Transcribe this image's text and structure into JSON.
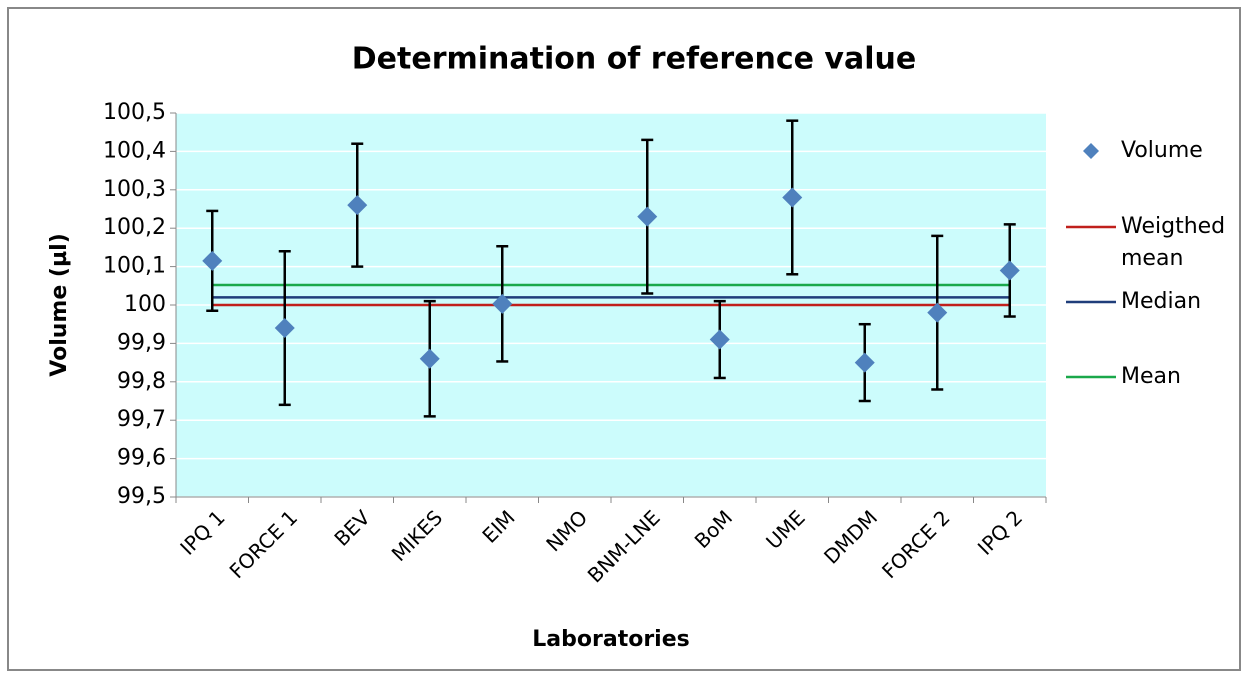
{
  "chart_data": {
    "type": "errorbar-scatter",
    "title": "Determination of reference value",
    "x_label": "Laboratories",
    "y_label": "Volume (µl)",
    "categories": [
      "IPQ 1",
      "FORCE 1",
      "BEV",
      "MIKES",
      "EIM",
      "NMO",
      "BNM-LNE",
      "BoM",
      "UME",
      "DMDM",
      "FORCE 2",
      "IPQ 2"
    ],
    "series": [
      {
        "name": "Volume",
        "color": "#4f81bd",
        "marker": "diamond",
        "values": [
          100.115,
          99.94,
          100.26,
          99.86,
          100.003,
          null,
          100.23,
          99.91,
          100.28,
          99.85,
          99.98,
          100.09
        ],
        "errors": [
          0.13,
          0.2,
          0.16,
          0.15,
          0.15,
          null,
          0.2,
          0.1,
          0.2,
          0.1,
          0.2,
          0.12
        ]
      },
      {
        "name": "Weigthed mean",
        "color": "#c0201c",
        "marker": "line",
        "values": [
          100,
          100,
          100,
          100,
          100,
          100,
          100,
          100,
          100,
          100,
          100,
          100
        ]
      },
      {
        "name": "Median",
        "color": "#1f3d7a",
        "marker": "line",
        "values": [
          100.02,
          100.02,
          100.02,
          100.02,
          100.02,
          100.02,
          100.02,
          100.02,
          100.02,
          100.02,
          100.02,
          100.02
        ]
      },
      {
        "name": "Mean",
        "color": "#1aa84a",
        "marker": "line",
        "values": [
          100.052,
          100.052,
          100.052,
          100.052,
          100.052,
          100.052,
          100.052,
          100.052,
          100.052,
          100.052,
          100.052,
          100.052
        ]
      }
    ],
    "ylim": [
      99.5,
      100.5
    ],
    "yticks": [
      {
        "value": 99.5,
        "label": "99,5"
      },
      {
        "value": 99.6,
        "label": "99,6"
      },
      {
        "value": 99.7,
        "label": "99,7"
      },
      {
        "value": 99.8,
        "label": "99,8"
      },
      {
        "value": 99.9,
        "label": "99,9"
      },
      100,
      {
        "value": 100.1,
        "label": "100,1"
      },
      {
        "value": 100.2,
        "label": "100,2"
      },
      {
        "value": 100.3,
        "label": "100,3"
      },
      {
        "value": 100.4,
        "label": "100,4"
      },
      {
        "value": 100.5,
        "label": "100,5"
      }
    ],
    "grid": true,
    "legend": "right"
  }
}
